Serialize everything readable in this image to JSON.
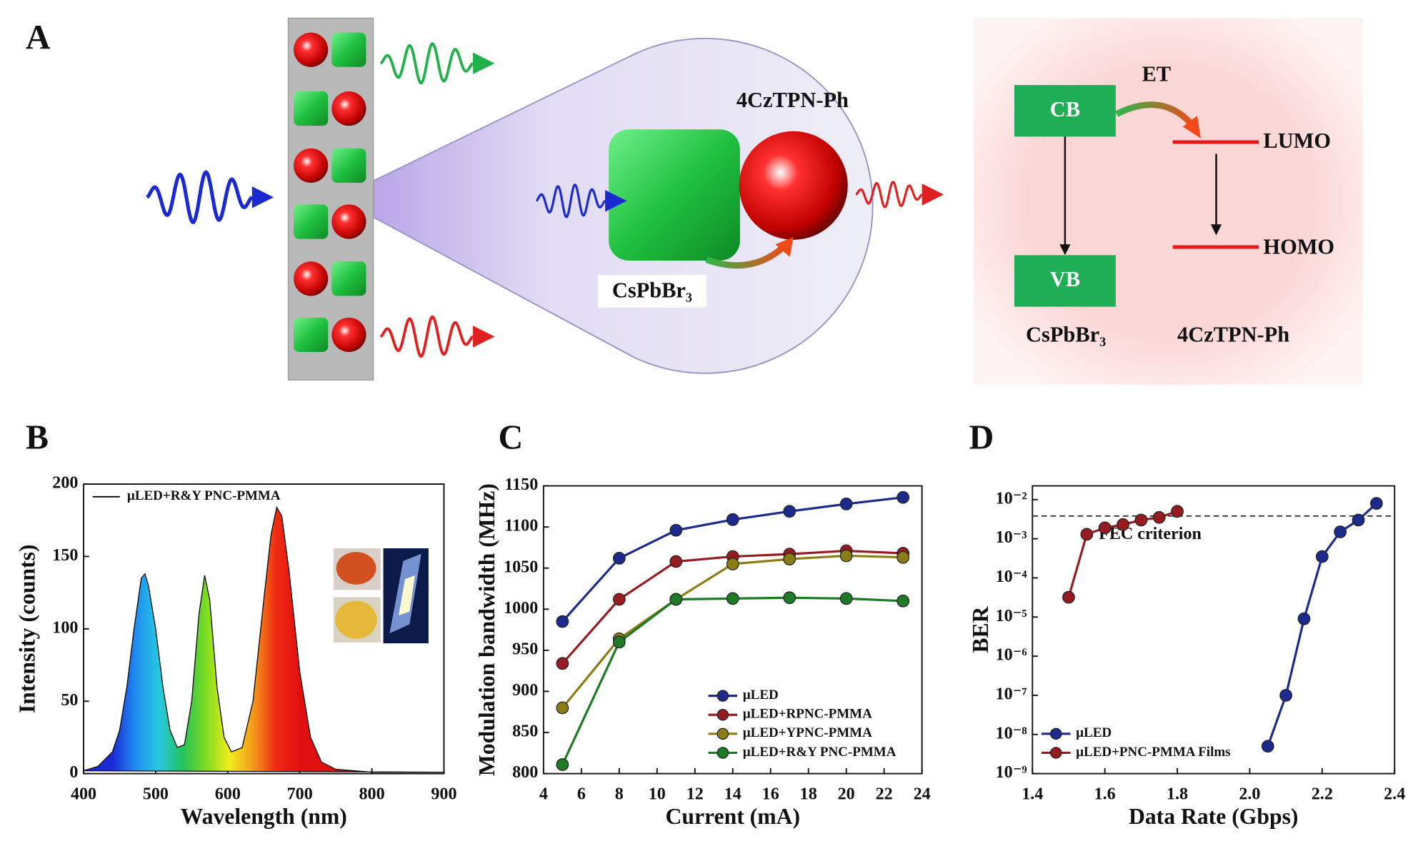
{
  "panel_labels": [
    "A",
    "B",
    "C",
    "D"
  ],
  "diagram": {
    "molecule_label": "4CzTPN-Ph",
    "crystal_label": "CsPbBr₃",
    "cb": "CB",
    "vb": "VB",
    "et": "ET",
    "lumo": "LUMO",
    "homo": "HOMO",
    "donor": "CsPbBr₃",
    "acceptor": "4CzTPN-Ph"
  },
  "chart_data": [
    {
      "type": "area",
      "xlabel": "Wavelength (nm)",
      "ylabel": "Intensity (counts)",
      "xlim": [
        400,
        900
      ],
      "ylim": [
        0,
        200
      ],
      "xticks": [
        400,
        500,
        600,
        700,
        800,
        900
      ],
      "yticks": [
        0,
        50,
        100,
        150,
        200
      ],
      "grid": false,
      "legend": "upper left",
      "fill_colors": [
        "#1a2ad8",
        "#1f8ff0",
        "#27c8e0",
        "#24c25a",
        "#7fdc1e",
        "#f3ec1c",
        "#f59a1c",
        "#ef2a12",
        "#e01010"
      ],
      "series": [
        {
          "name": "µLED+R&Y PNC-PMMA",
          "color": "#000000",
          "x": [
            400,
            420,
            440,
            450,
            460,
            470,
            480,
            485,
            490,
            500,
            510,
            520,
            530,
            540,
            550,
            560,
            568,
            575,
            585,
            595,
            605,
            620,
            635,
            650,
            660,
            668,
            675,
            685,
            700,
            715,
            730,
            750,
            800,
            900
          ],
          "values": [
            2,
            5,
            15,
            30,
            60,
            100,
            135,
            138,
            130,
            100,
            60,
            30,
            18,
            20,
            50,
            110,
            137,
            120,
            60,
            25,
            15,
            18,
            50,
            120,
            165,
            184,
            178,
            140,
            70,
            25,
            8,
            3,
            1,
            1
          ]
        }
      ]
    },
    {
      "type": "line",
      "xlabel": "Current (mA)",
      "ylabel": "Modulation bandwidth (MHz)",
      "xlim": [
        4,
        24
      ],
      "ylim": [
        800,
        1150
      ],
      "xticks": [
        4,
        6,
        8,
        10,
        12,
        14,
        16,
        18,
        20,
        22,
        24
      ],
      "yticks": [
        800,
        850,
        900,
        950,
        1000,
        1050,
        1100,
        1150
      ],
      "grid": false,
      "legend": "lower right",
      "x": [
        5,
        8,
        11,
        14,
        17,
        20,
        23
      ],
      "series": [
        {
          "name": "µLED",
          "color": "#1c2a8c",
          "values": [
            985,
            1062,
            1096,
            1109,
            1119,
            1128,
            1136
          ]
        },
        {
          "name": "µLED+RPNC-PMMA",
          "color": "#961c22",
          "values": [
            934,
            1012,
            1058,
            1064,
            1067,
            1071,
            1068
          ]
        },
        {
          "name": "µLED+YPNC-PMMA",
          "color": "#8a7d16",
          "values": [
            880,
            964,
            1012,
            1055,
            1061,
            1065,
            1063
          ]
        },
        {
          "name": "µLED+R&Y PNC-PMMA",
          "color": "#1e7a24",
          "values": [
            811,
            960,
            1012,
            1013,
            1014,
            1013,
            1010
          ]
        }
      ]
    },
    {
      "type": "line",
      "xlabel": "Data Rate (Gbps)",
      "ylabel": "BER",
      "log_y": true,
      "xlim": [
        1.4,
        2.4
      ],
      "ylim": [
        1e-09,
        0.0224
      ],
      "xticks": [
        1.4,
        1.6,
        1.8,
        {
          "value": 2,
          "label": "2.0"
        },
        2.2,
        2.4
      ],
      "yticks": [
        {
          "value": 1e-09,
          "label": "10⁻⁹"
        },
        {
          "value": 1e-08,
          "label": "10⁻⁸"
        },
        {
          "value": 1e-07,
          "label": "10⁻⁷"
        },
        {
          "value": 1e-06,
          "label": "10⁻⁶"
        },
        {
          "value": 1e-05,
          "label": "10⁻⁵"
        },
        {
          "value": 0.0001,
          "label": "10⁻⁴"
        },
        {
          "value": 0.001,
          "label": "10⁻³"
        },
        {
          "value": 0.01,
          "label": "10⁻²"
        }
      ],
      "grid": false,
      "legend": "lower left",
      "fec_threshold": 0.0038,
      "fec_label": "FEC criterion",
      "series": [
        {
          "name": "µLED",
          "color": "#1c2a8c",
          "x": [
            2.05,
            2.1,
            2.15,
            2.2,
            2.25,
            2.3,
            2.35
          ],
          "values": [
            5e-09,
            1e-07,
            9e-06,
            0.00035,
            0.0015,
            0.003,
            0.008
          ]
        },
        {
          "name": "µLED+PNC-PMMA Films",
          "color": "#961c22",
          "x": [
            1.5,
            1.55,
            1.6,
            1.65,
            1.7,
            1.75,
            1.8
          ],
          "values": [
            3.2e-05,
            0.0013,
            0.0019,
            0.0023,
            0.003,
            0.0035,
            0.005
          ]
        }
      ]
    }
  ]
}
